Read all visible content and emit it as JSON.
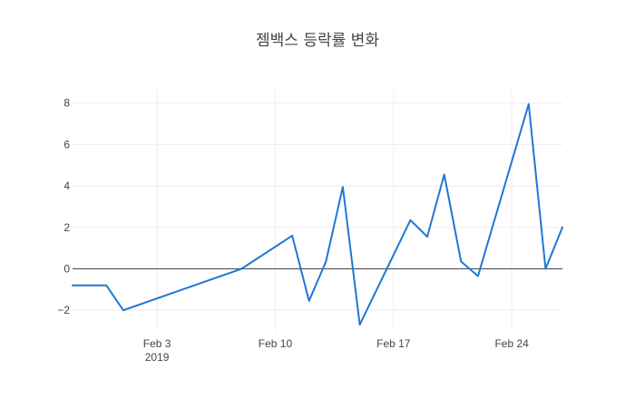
{
  "chart_data": {
    "type": "line",
    "title": "젬백스 등락률 변화",
    "xlabel": "",
    "ylabel": "",
    "x_ticks": [
      {
        "date": "2019-02-03",
        "label": "Feb 3",
        "sublabel": "2019"
      },
      {
        "date": "2019-02-10",
        "label": "Feb 10",
        "sublabel": ""
      },
      {
        "date": "2019-02-17",
        "label": "Feb 17",
        "sublabel": ""
      },
      {
        "date": "2019-02-24",
        "label": "Feb 24",
        "sublabel": ""
      }
    ],
    "y_ticks": [
      -2,
      0,
      2,
      4,
      6,
      8
    ],
    "xlim": [
      "2019-01-29",
      "2019-02-27"
    ],
    "ylim": [
      -3.0,
      8.6
    ],
    "grid": true,
    "zero_line": true,
    "color": "#1f77d4",
    "x": [
      "2019-01-29",
      "2019-01-30",
      "2019-01-31",
      "2019-02-01",
      "2019-02-08",
      "2019-02-11",
      "2019-02-12",
      "2019-02-13",
      "2019-02-14",
      "2019-02-15",
      "2019-02-18",
      "2019-02-19",
      "2019-02-20",
      "2019-02-21",
      "2019-02-22",
      "2019-02-25",
      "2019-02-26",
      "2019-02-27"
    ],
    "values": [
      -0.8,
      -0.8,
      -0.8,
      -2.0,
      0.0,
      1.6,
      -1.55,
      0.35,
      3.95,
      -2.7,
      2.35,
      1.55,
      4.55,
      0.35,
      -0.35,
      7.95,
      0.0,
      2.0
    ]
  }
}
